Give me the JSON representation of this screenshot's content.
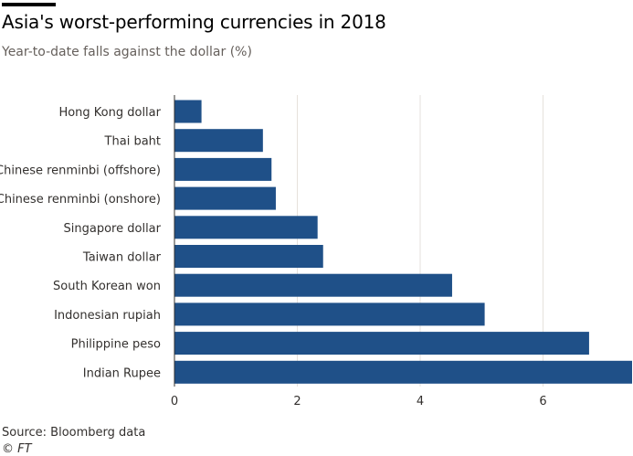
{
  "header": {
    "title": "Asia's worst-performing currencies in 2018",
    "subtitle": "Year-to-date falls against the dollar (%)"
  },
  "footer": {
    "source": "Source: Bloomberg data",
    "copyright": "© FT"
  },
  "colors": {
    "bar": "#1f5088",
    "grid": "#e6e1dc",
    "axis_line": "#33302e",
    "label": "#33302e"
  },
  "chart_data": {
    "type": "bar",
    "orientation": "horizontal",
    "title": "Asia's worst-performing currencies in 2018",
    "subtitle": "Year-to-date falls against the dollar (%)",
    "xlabel": "",
    "ylabel": "",
    "xlim": [
      0,
      7.45
    ],
    "xticks": [
      0,
      2,
      4,
      6
    ],
    "grid": true,
    "legend": "none",
    "categories": [
      "Hong Kong dollar",
      "Thai baht",
      "Chinese renminbi (offshore)",
      "Chinese renminbi (onshore)",
      "Singapore dollar",
      "Taiwan dollar",
      "South Korean won",
      "Indonesian rupiah",
      "Philippine peso",
      "Indian Rupee"
    ],
    "values": [
      0.44,
      1.44,
      1.58,
      1.65,
      2.33,
      2.42,
      4.52,
      5.05,
      6.75,
      7.45
    ]
  }
}
